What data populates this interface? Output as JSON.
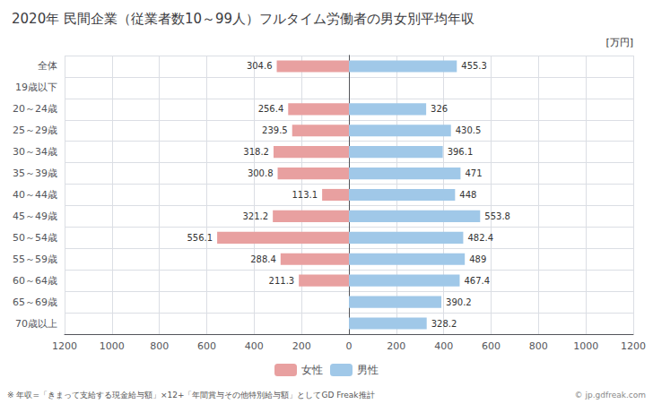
{
  "chart_data": {
    "type": "bar",
    "orientation": "horizontal",
    "title": "2020年 民間企業（従業者数10～99人）フルタイム労働者の男女別平均年収",
    "xlabel": "[万円]",
    "annotations": [
      "※ 年収=「きまって支給する現金給与額」×12+「年間賞与その他特別給与額」としてGD Freak推計",
      "© jp.gdfreak.com"
    ],
    "categories": [
      "全体",
      "19歳以下",
      "20～24歳",
      "25～29歳",
      "30～34歳",
      "35～39歳",
      "40～44歳",
      "45～49歳",
      "50～54歳",
      "55～59歳",
      "60～64歳",
      "65～69歳",
      "70歳以上"
    ],
    "series": [
      {
        "name": "女性",
        "color": "#e8a0a0",
        "values": [
          304.6,
          0,
          256.4,
          239.5,
          318.2,
          300.8,
          113.1,
          321.2,
          556.1,
          288.4,
          211.3,
          0,
          0
        ]
      },
      {
        "name": "男性",
        "color": "#a0c8e8",
        "values": [
          455.3,
          0,
          326.0,
          430.5,
          396.1,
          471.0,
          448.0,
          553.8,
          482.4,
          489.0,
          467.4,
          390.2,
          328.2
        ]
      }
    ],
    "xlim": [
      0,
      1200
    ],
    "xticks": [
      0,
      200,
      400,
      600,
      800,
      1000,
      1200
    ],
    "grid": true,
    "legend": "bottom",
    "data_labels": true
  }
}
